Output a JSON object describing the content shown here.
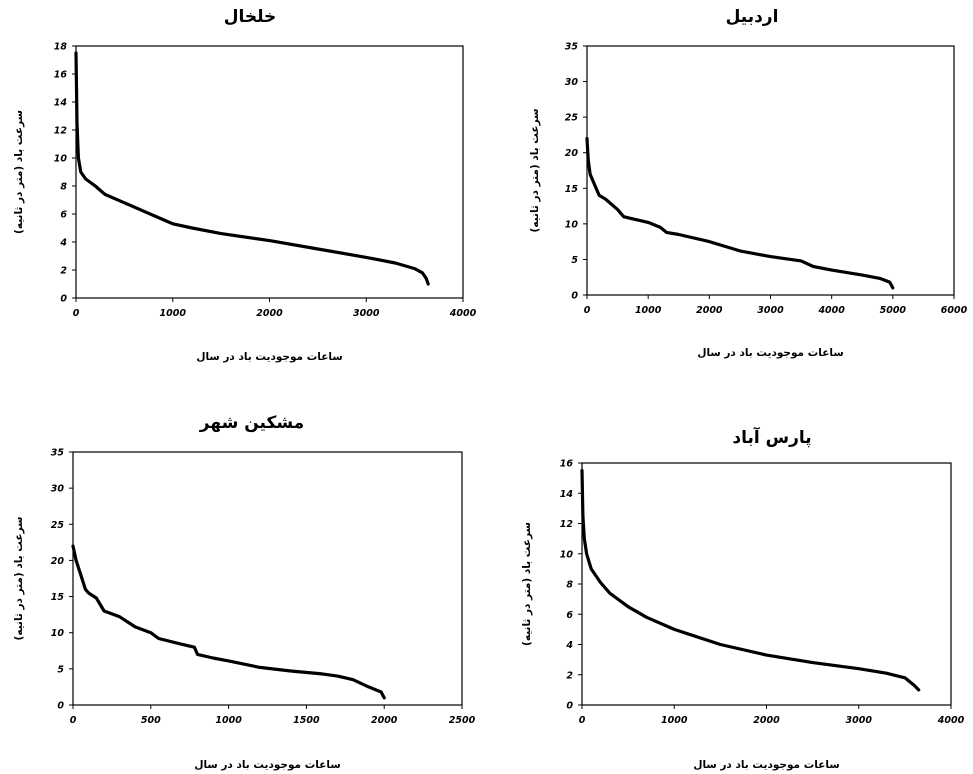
{
  "chart_data": [
    {
      "type": "line",
      "title": "خلخال",
      "xlabel": "ساعات موجودیت باد در سال",
      "ylabel": "سرعت باد (متر در ثانیه)",
      "xlim": [
        0,
        4000
      ],
      "ylim": [
        0,
        18
      ],
      "xticks": [
        0,
        1000,
        2000,
        3000,
        4000
      ],
      "yticks": [
        0,
        2,
        4,
        6,
        8,
        10,
        12,
        14,
        16,
        18
      ],
      "grid": false,
      "series": [
        {
          "x": [
            0,
            10,
            25,
            50,
            100,
            200,
            300,
            500,
            700,
            900,
            1000,
            1200,
            1500,
            2000,
            2500,
            3000,
            3300,
            3500,
            3580,
            3620,
            3640
          ],
          "y": [
            17.5,
            12.5,
            10,
            9,
            8.5,
            8,
            7.4,
            6.8,
            6.2,
            5.6,
            5.3,
            5.0,
            4.6,
            4.1,
            3.5,
            2.9,
            2.5,
            2.1,
            1.8,
            1.4,
            1.0
          ]
        }
      ]
    },
    {
      "type": "line",
      "title": "اردبیل",
      "xlabel": "ساعات موجودیت باد در سال",
      "ylabel": "سرعت باد (متر در ثانیه)",
      "xlim": [
        0,
        6000
      ],
      "ylim": [
        0,
        35
      ],
      "xticks": [
        0,
        1000,
        2000,
        3000,
        4000,
        5000,
        6000
      ],
      "yticks": [
        0,
        5,
        10,
        15,
        20,
        25,
        30,
        35
      ],
      "grid": false,
      "series": [
        {
          "x": [
            0,
            20,
            50,
            100,
            200,
            300,
            500,
            600,
            700,
            1000,
            1200,
            1300,
            1500,
            2000,
            2500,
            3000,
            3500,
            3700,
            4000,
            4500,
            4800,
            4950,
            5000
          ],
          "y": [
            22,
            19,
            17,
            16,
            14,
            13.5,
            12,
            11,
            10.8,
            10.2,
            9.5,
            8.8,
            8.5,
            7.5,
            6.2,
            5.4,
            4.8,
            4.0,
            3.5,
            2.8,
            2.3,
            1.8,
            1.0
          ]
        }
      ]
    },
    {
      "type": "line",
      "title": "مشکین شهر",
      "xlabel": "ساعات موجودیت باد در سال",
      "ylabel": "سرعت باد (متر در ثانیه)",
      "xlim": [
        0,
        2500
      ],
      "ylim": [
        0,
        35
      ],
      "xticks": [
        0,
        500,
        1000,
        1500,
        2000,
        2500
      ],
      "yticks": [
        0,
        5,
        10,
        15,
        20,
        25,
        30,
        35
      ],
      "grid": false,
      "series": [
        {
          "x": [
            0,
            20,
            50,
            80,
            100,
            150,
            200,
            300,
            350,
            400,
            500,
            550,
            700,
            780,
            800,
            900,
            1000,
            1200,
            1400,
            1600,
            1700,
            1800,
            1900,
            1980,
            2000
          ],
          "y": [
            22,
            20,
            18,
            16,
            15.5,
            14.8,
            13,
            12.2,
            11.5,
            10.8,
            10,
            9.2,
            8.4,
            8,
            7,
            6.5,
            6.1,
            5.2,
            4.7,
            4.3,
            4.0,
            3.5,
            2.5,
            1.8,
            1.0
          ]
        }
      ]
    },
    {
      "type": "line",
      "title": "پارس آباد",
      "xlabel": "ساعات موجودیت باد در سال",
      "ylabel": "سرعت باد (متر در ثانیه)",
      "xlim": [
        0,
        4000
      ],
      "ylim": [
        0,
        16
      ],
      "xticks": [
        0,
        1000,
        2000,
        3000,
        4000
      ],
      "yticks": [
        0,
        2,
        4,
        6,
        8,
        10,
        12,
        14,
        16
      ],
      "grid": false,
      "series": [
        {
          "x": [
            0,
            10,
            25,
            50,
            100,
            200,
            300,
            500,
            700,
            1000,
            1500,
            2000,
            2500,
            3000,
            3300,
            3500,
            3600,
            3650
          ],
          "y": [
            15.5,
            12.5,
            11,
            10,
            9,
            8.1,
            7.4,
            6.5,
            5.8,
            5.0,
            4.0,
            3.3,
            2.8,
            2.4,
            2.1,
            1.8,
            1.3,
            1.0
          ]
        }
      ]
    }
  ]
}
